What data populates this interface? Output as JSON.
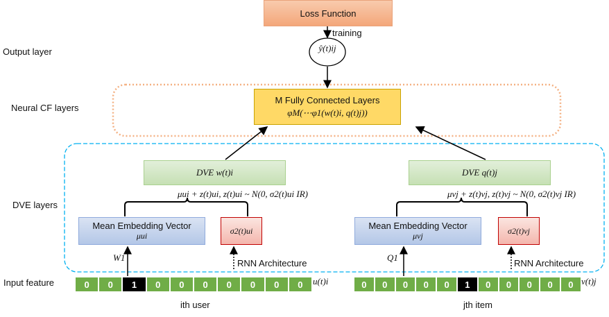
{
  "row_labels": {
    "output": "Output layer",
    "neural_cf": "Neural CF layers",
    "dve": "DVE layers",
    "input": "Input feature"
  },
  "loss_box": {
    "label": "Loss Function"
  },
  "training_label": "training",
  "output_node": "ŷ(t)ij",
  "fc_box": {
    "title": "M Fully Connected Layers",
    "formula": "φM(⋯φ1(w(t)i, q(t)j))"
  },
  "user": {
    "dve_label": "DVE w(t)i",
    "mean_label": "Mean Embedding Vector",
    "mean_symbol": "μui",
    "sigma_symbol": "σ2(t)ui",
    "equation": "μui + z(t)ui, z(t)ui ~ N(0, σ2(t)ui IR)",
    "weight": "W1",
    "rnn": "RNN  Architecture",
    "vector_label": "u(t)i",
    "caption": "ith  user",
    "cells": [
      "0",
      "0",
      "1",
      "0",
      "0",
      "0",
      "0",
      "0",
      "0",
      "0"
    ],
    "active_index": 2
  },
  "item": {
    "dve_label": "DVE q(t)j",
    "mean_label": "Mean Embedding Vector",
    "mean_symbol": "μvj",
    "sigma_symbol": "σ2(t)vj",
    "equation": "μvj + z(t)vj, z(t)vj ~ N(0, σ2(t)vj IR)",
    "weight": "Q1",
    "rnn": "RNN  Architecture",
    "vector_label": "v(t)j",
    "caption": "jth  item",
    "cells": [
      "0",
      "0",
      "0",
      "0",
      "0",
      "1",
      "0",
      "0",
      "0",
      "0",
      "0"
    ],
    "active_index": 5
  },
  "colors": {
    "loss_fill": "#f4b183",
    "fc_fill": "#ffd966",
    "fc_border": "#c9a200",
    "dve_fill": "#d5e8d4",
    "mean_fill": "#b4c7e7",
    "sigma_fill": "#f4b6ad",
    "cell_green": "#70ad47",
    "cell_active": "#000000",
    "orange_dash": "#f4b183",
    "blue_dash": "#00b0f0"
  }
}
